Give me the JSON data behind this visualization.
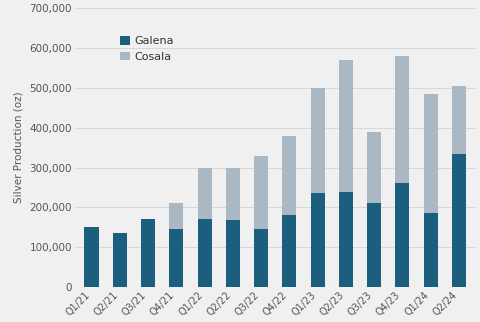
{
  "categories": [
    "Q1/21",
    "Q2/21",
    "Q3/21",
    "Q4/21",
    "Q1/22",
    "Q2/22",
    "Q3/22",
    "Q4/22",
    "Q1/23",
    "Q2/23",
    "Q3/23",
    "Q4/23",
    "Q1/24",
    "Q2/24"
  ],
  "galena": [
    150000,
    135000,
    170000,
    145000,
    170000,
    168000,
    145000,
    180000,
    235000,
    238000,
    210000,
    260000,
    185000,
    335000
  ],
  "cosala": [
    0,
    0,
    0,
    65000,
    130000,
    132000,
    185000,
    200000,
    265000,
    332000,
    178000,
    320000,
    300000,
    170000
  ],
  "galena_color": "#1b5e7e",
  "cosala_color": "#aab8c4",
  "ylabel": "Silver Production (oz)",
  "ylim": [
    0,
    700000
  ],
  "yticks": [
    0,
    100000,
    200000,
    300000,
    400000,
    500000,
    600000,
    700000
  ],
  "legend_labels": [
    "Galena",
    "Cosala"
  ],
  "bg_color": "#f0f0f0",
  "plot_bg": "#f0f0f0",
  "grid_color": "#d8d8d8",
  "bar_width": 0.5
}
